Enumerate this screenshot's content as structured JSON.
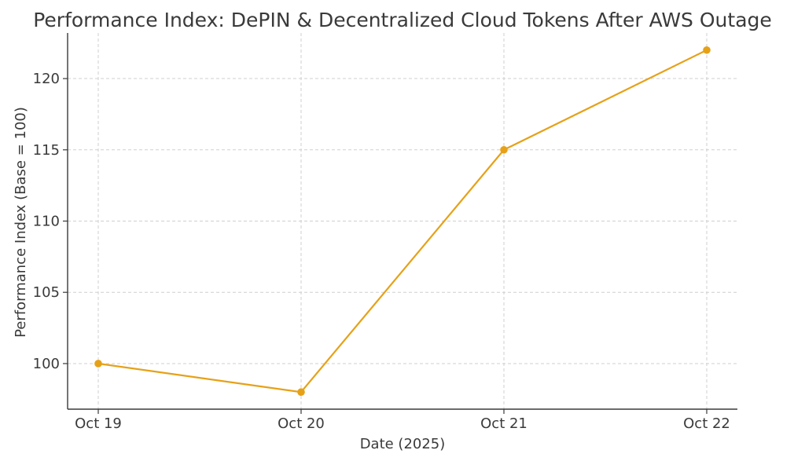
{
  "chart_data": {
    "type": "line",
    "title": "Performance Index: DePIN & Decentralized Cloud Tokens After AWS Outage",
    "xlabel": "Date (2025)",
    "ylabel": "Performance Index (Base = 100)",
    "categories": [
      "Oct 19",
      "Oct 20",
      "Oct 21",
      "Oct 22"
    ],
    "series": [
      {
        "values": [
          100,
          98,
          115,
          122
        ],
        "color": "#e6a117"
      }
    ],
    "yticks": [
      100,
      105,
      110,
      115,
      120
    ],
    "ylim": [
      96.8,
      123.2
    ],
    "grid": true,
    "legend": "none"
  }
}
